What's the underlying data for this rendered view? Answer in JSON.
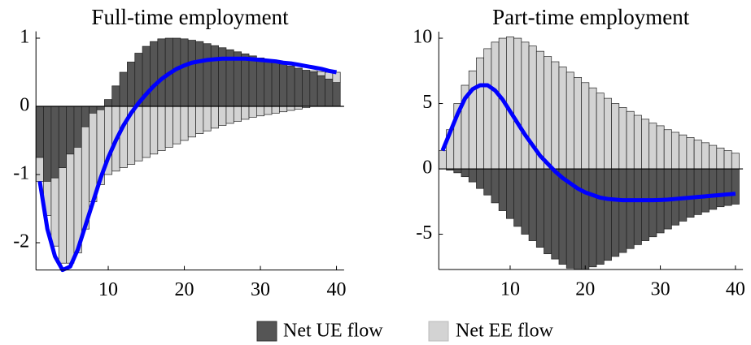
{
  "chart_data": [
    {
      "type": "bar",
      "title": "Full-time employment",
      "x": [
        1,
        2,
        3,
        4,
        5,
        6,
        7,
        8,
        9,
        10,
        11,
        12,
        13,
        14,
        15,
        16,
        17,
        18,
        19,
        20,
        21,
        22,
        23,
        24,
        25,
        26,
        27,
        28,
        29,
        30,
        31,
        32,
        33,
        34,
        35,
        36,
        37,
        38,
        39,
        40
      ],
      "series": [
        {
          "name": "Net UE flow",
          "color": "#555555",
          "values": [
            -0.75,
            -1.1,
            -1.05,
            -0.9,
            -0.7,
            -0.6,
            -0.3,
            -0.1,
            -0.05,
            0.1,
            0.3,
            0.5,
            0.65,
            0.78,
            0.88,
            0.95,
            0.99,
            1.0,
            1.0,
            0.99,
            0.97,
            0.95,
            0.92,
            0.89,
            0.86,
            0.83,
            0.8,
            0.77,
            0.74,
            0.71,
            0.68,
            0.65,
            0.62,
            0.59,
            0.56,
            0.53,
            0.5,
            0.45,
            0.4,
            0.35
          ]
        },
        {
          "name": "Net EE flow",
          "color": "#d3d3d3",
          "values": [
            -0.35,
            -0.5,
            -1.0,
            -1.4,
            -1.6,
            -1.55,
            -1.5,
            -1.3,
            -1.1,
            -1.0,
            -0.95,
            -0.9,
            -0.85,
            -0.8,
            -0.75,
            -0.7,
            -0.65,
            -0.6,
            -0.55,
            -0.5,
            -0.45,
            -0.4,
            -0.36,
            -0.32,
            -0.28,
            -0.25,
            -0.22,
            -0.19,
            -0.16,
            -0.14,
            -0.12,
            -0.1,
            -0.08,
            -0.06,
            -0.04,
            -0.02,
            0.02,
            0.06,
            0.1,
            0.15
          ]
        }
      ],
      "line": {
        "color": "#0000ff",
        "values": [
          -1.1,
          -1.8,
          -2.2,
          -2.4,
          -2.35,
          -2.1,
          -1.75,
          -1.4,
          -1.05,
          -0.75,
          -0.5,
          -0.28,
          -0.1,
          0.05,
          0.18,
          0.3,
          0.4,
          0.48,
          0.55,
          0.6,
          0.64,
          0.66,
          0.68,
          0.69,
          0.7,
          0.7,
          0.7,
          0.7,
          0.69,
          0.68,
          0.67,
          0.66,
          0.64,
          0.63,
          0.61,
          0.59,
          0.57,
          0.55,
          0.52,
          0.5
        ]
      },
      "xlim": [
        0.5,
        41
      ],
      "xticks": [
        10,
        20,
        30,
        40
      ],
      "ylim": [
        -2.4,
        1.1
      ],
      "yticks": [
        -2,
        -1,
        0,
        1
      ]
    },
    {
      "type": "bar",
      "title": "Part-time employment",
      "x": [
        1,
        2,
        3,
        4,
        5,
        6,
        7,
        8,
        9,
        10,
        11,
        12,
        13,
        14,
        15,
        16,
        17,
        18,
        19,
        20,
        21,
        22,
        23,
        24,
        25,
        26,
        27,
        28,
        29,
        30,
        31,
        32,
        33,
        34,
        35,
        36,
        37,
        38,
        39,
        40
      ],
      "series": [
        {
          "name": "Net UE flow",
          "color": "#555555",
          "values": [
            0,
            -0.1,
            -0.3,
            -0.6,
            -1.0,
            -1.5,
            -2.0,
            -2.6,
            -3.2,
            -3.8,
            -4.4,
            -5.0,
            -5.5,
            -6.0,
            -6.5,
            -6.9,
            -7.3,
            -7.6,
            -7.7,
            -7.7,
            -7.5,
            -7.3,
            -7.0,
            -6.7,
            -6.4,
            -6.1,
            -5.8,
            -5.5,
            -5.2,
            -4.9,
            -4.6,
            -4.3,
            -4.0,
            -3.7,
            -3.5,
            -3.3,
            -3.1,
            -2.9,
            -2.8,
            -2.7
          ]
        },
        {
          "name": "Net EE flow",
          "color": "#d3d3d3",
          "values": [
            1.4,
            3,
            5,
            6.4,
            7.5,
            8.5,
            9.2,
            9.7,
            10,
            10.1,
            10,
            9.7,
            9.4,
            9.0,
            8.6,
            8.2,
            7.8,
            7.4,
            7.0,
            6.6,
            6.2,
            5.8,
            5.4,
            5.0,
            4.7,
            4.4,
            4.1,
            3.8,
            3.5,
            3.3,
            3.0,
            2.8,
            2.6,
            2.4,
            2.2,
            2.0,
            1.8,
            1.6,
            1.4,
            1.2
          ]
        }
      ],
      "line": {
        "color": "#0000ff",
        "values": [
          1.4,
          2.8,
          4.2,
          5.4,
          6.1,
          6.4,
          6.4,
          6.0,
          5.3,
          4.4,
          3.5,
          2.6,
          1.8,
          1.0,
          0.4,
          -0.2,
          -0.7,
          -1.1,
          -1.5,
          -1.8,
          -2.0,
          -2.2,
          -2.3,
          -2.35,
          -2.4,
          -2.4,
          -2.4,
          -2.4,
          -2.4,
          -2.38,
          -2.35,
          -2.3,
          -2.25,
          -2.2,
          -2.15,
          -2.1,
          -2.05,
          -2.0,
          -1.95,
          -1.9
        ]
      },
      "xlim": [
        0.5,
        41
      ],
      "xticks": [
        10,
        20,
        30,
        40
      ],
      "ylim": [
        -7.7,
        10.5
      ],
      "yticks": [
        -5,
        0,
        5,
        10
      ]
    }
  ]
}
